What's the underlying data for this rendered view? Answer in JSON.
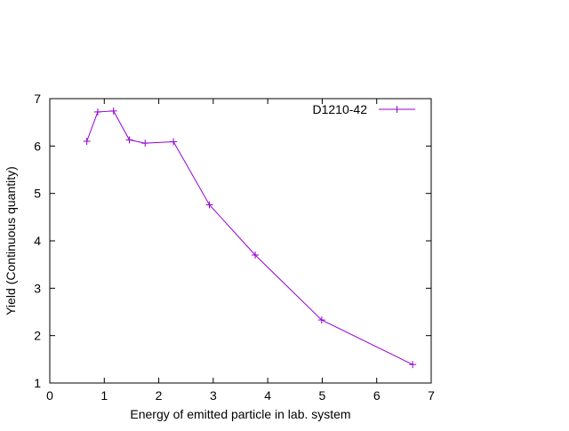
{
  "chart_data": {
    "type": "line",
    "title": "",
    "xlabel": "Energy of emitted particle in lab. system",
    "ylabel": "Yield (Continuous quantity)",
    "xlim": [
      0,
      7
    ],
    "ylim": [
      1,
      7
    ],
    "x_ticks": [
      0,
      1,
      2,
      3,
      4,
      5,
      6,
      7
    ],
    "y_ticks": [
      1,
      2,
      3,
      4,
      5,
      6,
      7
    ],
    "grid": false,
    "legend_position": "top-right",
    "series": [
      {
        "name": "D1210-42",
        "color": "#9400d3",
        "marker": "plus",
        "x": [
          0.68,
          0.88,
          1.17,
          1.46,
          1.75,
          2.27,
          2.93,
          3.77,
          4.99,
          6.66
        ],
        "y": [
          6.1,
          6.72,
          6.74,
          6.13,
          6.06,
          6.09,
          4.76,
          3.7,
          2.33,
          1.39
        ]
      }
    ]
  }
}
